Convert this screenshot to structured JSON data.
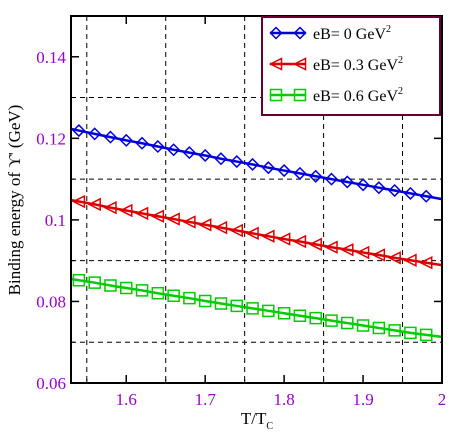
{
  "chart_data": {
    "type": "line",
    "xlabel": "T/T",
    "xlabel_sub": "C",
    "ylabel": "Binding energy of ϒ' (GeV)",
    "xlim": [
      1.53,
      2.0
    ],
    "ylim": [
      0.06,
      0.15
    ],
    "x_ticks": [
      "1.6",
      "1.7",
      "1.8",
      "1.9",
      "2"
    ],
    "x_tick_values": [
      1.6,
      1.7,
      1.8,
      1.9,
      2.0
    ],
    "y_ticks": [
      "0.06",
      "0.08",
      "0.1",
      "0.12",
      "0.14"
    ],
    "y_tick_values": [
      0.06,
      0.08,
      0.1,
      0.12,
      0.14
    ],
    "grid_x": [
      1.55,
      1.65,
      1.75,
      1.85,
      1.95
    ],
    "grid_y": [
      0.07,
      0.09,
      0.11,
      0.13
    ],
    "legend_position": "top-right",
    "series": [
      {
        "name": "eB= 0 GeV",
        "name_sup": "2",
        "color": "#0000dd",
        "marker": "diamond",
        "x": [
          1.54,
          1.56,
          1.58,
          1.6,
          1.62,
          1.64,
          1.66,
          1.68,
          1.7,
          1.72,
          1.74,
          1.76,
          1.78,
          1.8,
          1.82,
          1.84,
          1.86,
          1.88,
          1.9,
          1.92,
          1.94,
          1.96,
          1.98
        ],
        "values": [
          0.1219,
          0.1211,
          0.1203,
          0.1195,
          0.1188,
          0.118,
          0.1172,
          0.1165,
          0.1158,
          0.115,
          0.1143,
          0.1136,
          0.1128,
          0.1121,
          0.1114,
          0.1107,
          0.11,
          0.1093,
          0.1086,
          0.1079,
          0.1072,
          0.1065,
          0.1058
        ]
      },
      {
        "name": "eB= 0.3 GeV",
        "name_sup": "2",
        "color": "#dd0000",
        "marker": "triangle-left",
        "x": [
          1.54,
          1.56,
          1.58,
          1.6,
          1.62,
          1.64,
          1.66,
          1.68,
          1.7,
          1.72,
          1.74,
          1.76,
          1.78,
          1.8,
          1.82,
          1.84,
          1.86,
          1.88,
          1.9,
          1.92,
          1.94,
          1.96,
          1.98
        ],
        "values": [
          0.1045,
          0.1038,
          0.103,
          0.1023,
          0.1016,
          0.1009,
          0.1002,
          0.0995,
          0.0988,
          0.0981,
          0.0974,
          0.0967,
          0.096,
          0.0953,
          0.0947,
          0.094,
          0.0933,
          0.0927,
          0.092,
          0.0914,
          0.0907,
          0.0901,
          0.0895
        ]
      },
      {
        "name": "eB= 0.6 GeV",
        "name_sup": "2",
        "color": "#00cc00",
        "marker": "square",
        "x": [
          1.54,
          1.56,
          1.58,
          1.6,
          1.62,
          1.64,
          1.66,
          1.68,
          1.7,
          1.72,
          1.74,
          1.76,
          1.78,
          1.8,
          1.82,
          1.84,
          1.86,
          1.88,
          1.9,
          1.92,
          1.94,
          1.96,
          1.98
        ],
        "values": [
          0.0852,
          0.0846,
          0.0839,
          0.0833,
          0.0827,
          0.082,
          0.0814,
          0.0808,
          0.0801,
          0.0795,
          0.0789,
          0.0783,
          0.0777,
          0.0771,
          0.0765,
          0.0759,
          0.0753,
          0.0747,
          0.0741,
          0.0735,
          0.0729,
          0.0723,
          0.0718
        ]
      }
    ]
  }
}
